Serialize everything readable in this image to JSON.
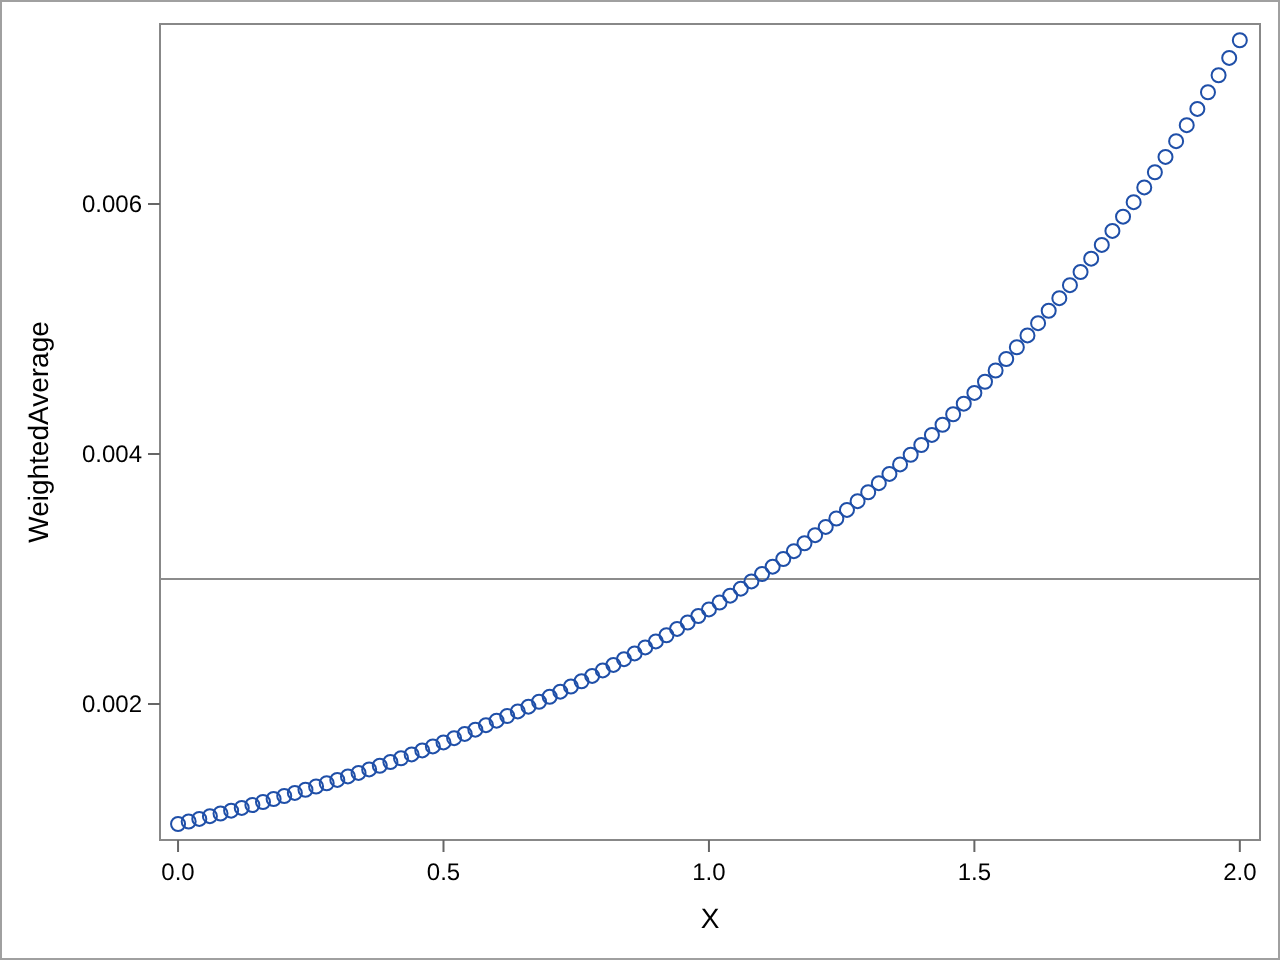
{
  "chart_data": {
    "type": "scatter",
    "xlabel": "X",
    "ylabel": "WeightedAverage",
    "marker": "circle",
    "grid": false,
    "xlim": [
      -0.034,
      2.038
    ],
    "ylim": [
      0.000912,
      0.00744
    ],
    "xticks": [
      {
        "value": 0,
        "label": "0.0"
      },
      {
        "value": 0.5,
        "label": "0.5"
      },
      {
        "value": 1,
        "label": "1.0"
      },
      {
        "value": 1.5,
        "label": "1.5"
      },
      {
        "value": 2,
        "label": "2.0"
      }
    ],
    "yticks": [
      0.002,
      0.004,
      0.006
    ],
    "ref_lines": [
      {
        "axis": "y",
        "value": 0.003,
        "label": null,
        "color": "#8c8c8c"
      }
    ],
    "x": [
      0,
      0.02,
      0.04,
      0.06,
      0.08,
      0.1,
      0.12,
      0.14,
      0.16,
      0.18,
      0.2,
      0.22,
      0.24,
      0.26,
      0.28,
      0.3,
      0.32,
      0.34,
      0.36,
      0.38,
      0.4,
      0.42,
      0.44,
      0.46,
      0.48,
      0.5,
      0.52,
      0.54,
      0.56,
      0.58,
      0.6,
      0.62,
      0.64,
      0.66,
      0.68,
      0.7,
      0.72,
      0.74,
      0.76,
      0.78,
      0.8,
      0.82,
      0.84,
      0.86,
      0.88,
      0.9,
      0.92,
      0.94,
      0.96,
      0.98,
      1,
      1.02,
      1.04,
      1.06,
      1.08,
      1.1,
      1.12,
      1.14,
      1.16,
      1.18,
      1.2,
      1.22,
      1.24,
      1.26,
      1.28,
      1.3,
      1.32,
      1.34,
      1.36,
      1.38,
      1.4,
      1.42,
      1.44,
      1.46,
      1.48,
      1.5,
      1.52,
      1.54,
      1.56,
      1.58,
      1.6,
      1.62,
      1.64,
      1.66,
      1.68,
      1.7,
      1.72,
      1.74,
      1.76,
      1.78,
      1.8,
      1.82,
      1.84,
      1.86,
      1.88,
      1.9,
      1.92,
      1.94,
      1.96,
      1.98,
      2
    ],
    "series": [
      {
        "color": "#1f4fa8",
        "values": [
          0.00104,
          0.00106,
          0.001081,
          0.001103,
          0.001124,
          0.001147,
          0.001169,
          0.001192,
          0.001216,
          0.00124,
          0.001264,
          0.001289,
          0.001314,
          0.00134,
          0.001366,
          0.001393,
          0.001421,
          0.001449,
          0.001477,
          0.001506,
          0.001536,
          0.001566,
          0.001597,
          0.001629,
          0.001661,
          0.001693,
          0.001727,
          0.001761,
          0.001795,
          0.001831,
          0.001867,
          0.001904,
          0.001941,
          0.001979,
          0.002018,
          0.002058,
          0.002099,
          0.00214,
          0.002182,
          0.002225,
          0.002269,
          0.002313,
          0.002359,
          0.002405,
          0.002453,
          0.002501,
          0.00255,
          0.002601,
          0.002652,
          0.002704,
          0.002757,
          0.002812,
          0.002867,
          0.002923,
          0.002981,
          0.00304,
          0.003099,
          0.00316,
          0.003223,
          0.003286,
          0.003351,
          0.003417,
          0.003484,
          0.003553,
          0.003623,
          0.003694,
          0.003767,
          0.003841,
          0.003917,
          0.003994,
          0.004072,
          0.004153,
          0.004234,
          0.004318,
          0.004403,
          0.004489,
          0.004578,
          0.004668,
          0.00476,
          0.004854,
          0.004949,
          0.005047,
          0.005146,
          0.005247,
          0.005351,
          0.005456,
          0.005563,
          0.005673,
          0.005785,
          0.005899,
          0.006015,
          0.006133,
          0.006254,
          0.006377,
          0.006503,
          0.006631,
          0.006761,
          0.006894,
          0.00703,
          0.007169,
          0.00731
        ]
      }
    ]
  }
}
